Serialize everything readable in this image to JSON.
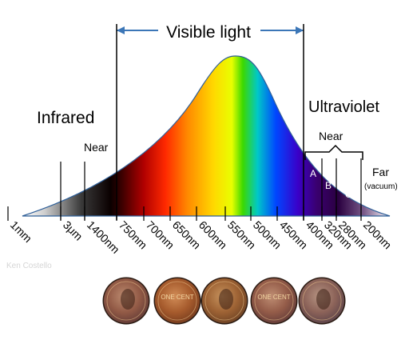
{
  "header": {
    "visible_light": "Visible light"
  },
  "regions": {
    "infrared": "Infrared",
    "infrared_near": "Near",
    "ultraviolet": "Ultraviolet",
    "uv_near": "Near",
    "uv_far": "Far",
    "uv_far_note": "(vacuum)"
  },
  "uv_bands": [
    "A",
    "B",
    "C"
  ],
  "wavelength_ticks": [
    "1mm",
    "3μm",
    "1400nm",
    "750nm",
    "700nm",
    "650nm",
    "600nm",
    "550nm",
    "500nm",
    "450nm",
    "400nm",
    "320nm",
    "280nm",
    "200nm"
  ],
  "watermark": "Ken Costello",
  "coins": [
    {
      "label": "",
      "tint": "#8a5a63"
    },
    {
      "label": "ONE CENT",
      "tint": "#b55d2d"
    },
    {
      "label": "",
      "tint": "#a16c3b"
    },
    {
      "label": "ONE CENT",
      "tint": "#8d5f6b"
    },
    {
      "label": "",
      "tint": "#7c6f8f"
    }
  ],
  "colors": {
    "arrow": "#3b76b7",
    "outline": "#2f5f98",
    "axis": "#000000"
  }
}
